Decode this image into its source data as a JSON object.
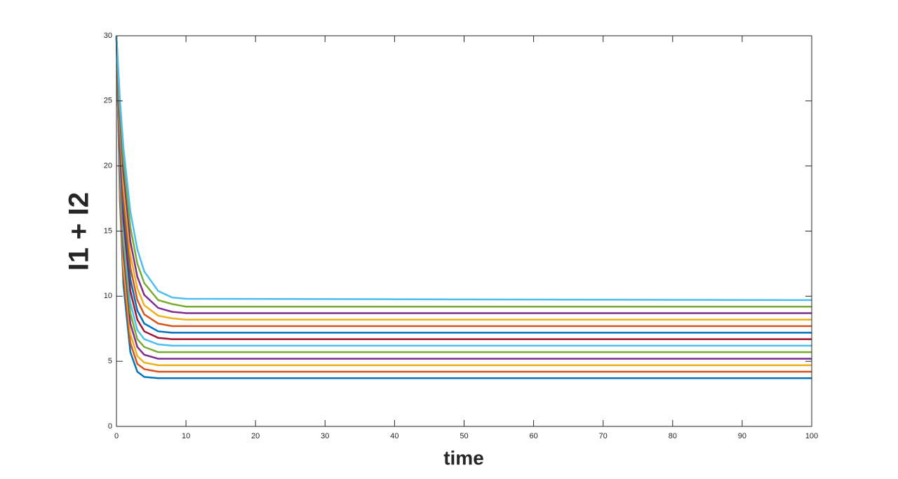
{
  "chart_data": {
    "type": "line",
    "xlabel": "time",
    "ylabel": "I1 + I2",
    "x": [
      0,
      0.5,
      1,
      2,
      3,
      4,
      6,
      8,
      10,
      100
    ],
    "series": [
      {
        "color": "#0072BD",
        "values": [
          30,
          17.4,
          10.9,
          5.7,
          4.2,
          3.8,
          3.7,
          3.7,
          3.7,
          3.7
        ]
      },
      {
        "color": "#D95319",
        "values": [
          30,
          18.1,
          11.7,
          6.4,
          4.8,
          4.4,
          4.2,
          4.2,
          4.2,
          4.2
        ]
      },
      {
        "color": "#EDB120",
        "values": [
          30,
          18.8,
          12.5,
          7.1,
          5.4,
          4.9,
          4.7,
          4.7,
          4.7,
          4.7
        ]
      },
      {
        "color": "#7E2F8E",
        "values": [
          30,
          19.4,
          13.4,
          7.9,
          6.1,
          5.5,
          5.2,
          5.2,
          5.2,
          5.2
        ]
      },
      {
        "color": "#77AC30",
        "values": [
          30,
          20.1,
          14.2,
          8.7,
          6.7,
          6.1,
          5.7,
          5.7,
          5.7,
          5.7
        ]
      },
      {
        "color": "#4DBEEE",
        "values": [
          30,
          20.7,
          15.1,
          9.5,
          7.4,
          6.7,
          6.3,
          6.2,
          6.2,
          6.2
        ]
      },
      {
        "color": "#A2142F",
        "values": [
          30,
          21.4,
          15.9,
          10.4,
          8.2,
          7.3,
          6.8,
          6.7,
          6.7,
          6.7
        ]
      },
      {
        "color": "#0072BD",
        "values": [
          30,
          22.0,
          16.8,
          11.3,
          8.9,
          7.9,
          7.3,
          7.2,
          7.2,
          7.2
        ]
      },
      {
        "color": "#D95319",
        "values": [
          30,
          22.6,
          17.7,
          12.2,
          9.7,
          8.6,
          7.9,
          7.7,
          7.7,
          7.7
        ]
      },
      {
        "color": "#EDB120",
        "values": [
          30,
          23.3,
          18.6,
          13.2,
          10.6,
          9.3,
          8.5,
          8.3,
          8.2,
          8.2
        ]
      },
      {
        "color": "#7E2F8E",
        "values": [
          30,
          23.9,
          19.5,
          14.2,
          11.5,
          10.1,
          9.1,
          8.8,
          8.7,
          8.7
        ]
      },
      {
        "color": "#77AC30",
        "values": [
          30,
          24.5,
          20.5,
          15.3,
          12.5,
          11.0,
          9.7,
          9.4,
          9.2,
          9.2
        ]
      },
      {
        "color": "#4DBEEE",
        "values": [
          30,
          25.1,
          21.4,
          16.5,
          13.6,
          11.9,
          10.4,
          9.9,
          9.8,
          9.7
        ]
      }
    ],
    "xlim": [
      0,
      100
    ],
    "xticks": [
      0,
      10,
      20,
      30,
      40,
      50,
      60,
      70,
      80,
      90,
      100
    ],
    "ylim": [
      0,
      30
    ],
    "yticks": [
      0,
      5,
      10,
      15,
      20,
      25,
      30
    ],
    "grid": false
  }
}
